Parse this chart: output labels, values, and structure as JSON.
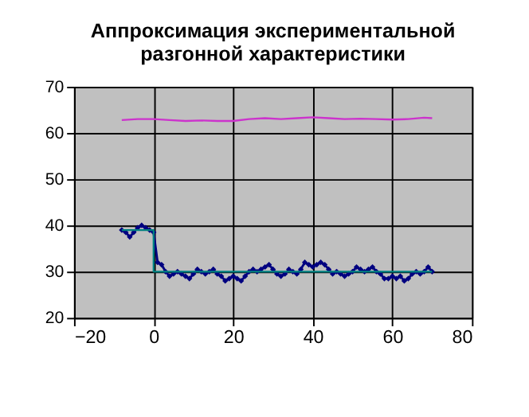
{
  "chart_data": {
    "type": "line",
    "title": "Аппроксимация экспериментальной\nразгонной характеристики",
    "xlim": [
      -20,
      80
    ],
    "xticks": [
      -20,
      0,
      20,
      40,
      60,
      80
    ],
    "ylim": [
      20,
      70
    ],
    "yticks": [
      20,
      30,
      40,
      50,
      60,
      70
    ],
    "grid": true,
    "series": [
      {
        "color": "#cc33cc",
        "x": [
          -8,
          -4,
          0,
          4,
          8,
          12,
          16,
          20,
          24,
          28,
          32,
          36,
          40,
          44,
          48,
          52,
          56,
          60,
          64,
          68,
          70
        ],
        "values": [
          62.8,
          63,
          63,
          62.8,
          62.6,
          62.7,
          62.6,
          62.6,
          63,
          63.2,
          63,
          63.2,
          63.4,
          63.2,
          63,
          63.1,
          63,
          62.9,
          63,
          63.3,
          63.2
        ]
      },
      {
        "color": "#000080",
        "marker": "diamond",
        "x": [
          -8,
          -7,
          -6,
          -5,
          -4,
          -3,
          -2,
          -1,
          0,
          1,
          2,
          3,
          4,
          5,
          6,
          7,
          8,
          9,
          10,
          11,
          12,
          13,
          14,
          15,
          16,
          17,
          18,
          19,
          20,
          21,
          22,
          23,
          24,
          25,
          26,
          27,
          28,
          29,
          30,
          31,
          32,
          33,
          34,
          35,
          36,
          37,
          38,
          39,
          40,
          41,
          42,
          43,
          44,
          45,
          46,
          47,
          48,
          49,
          50,
          51,
          52,
          53,
          54,
          55,
          56,
          57,
          58,
          59,
          60,
          61,
          62,
          63,
          64,
          65,
          66,
          67,
          68,
          69,
          70
        ],
        "values": [
          39,
          38.5,
          37.5,
          38.5,
          39.5,
          40,
          39.5,
          39,
          38.5,
          32,
          31.5,
          30,
          29,
          29.5,
          30,
          29.5,
          29,
          28.5,
          29.5,
          30.5,
          30,
          29.5,
          30,
          30.5,
          29.5,
          29,
          28,
          28.5,
          29,
          28.5,
          28,
          29,
          30,
          30.5,
          30,
          30.5,
          31,
          31.5,
          30.5,
          29.5,
          29,
          29.5,
          30.5,
          30,
          29.5,
          30.5,
          32,
          31.5,
          31,
          31.5,
          32,
          31.5,
          30.5,
          29.5,
          30,
          29.5,
          29,
          29.5,
          30,
          31,
          30.5,
          30,
          30.5,
          31,
          30,
          29.5,
          28.5,
          28.5,
          29,
          28.5,
          29,
          28,
          28.5,
          29.5,
          30,
          29.5,
          30,
          31,
          30
        ]
      },
      {
        "color": "#008080",
        "x": [
          -8,
          0,
          0,
          70
        ],
        "values": [
          39,
          39,
          30,
          30
        ]
      }
    ]
  }
}
